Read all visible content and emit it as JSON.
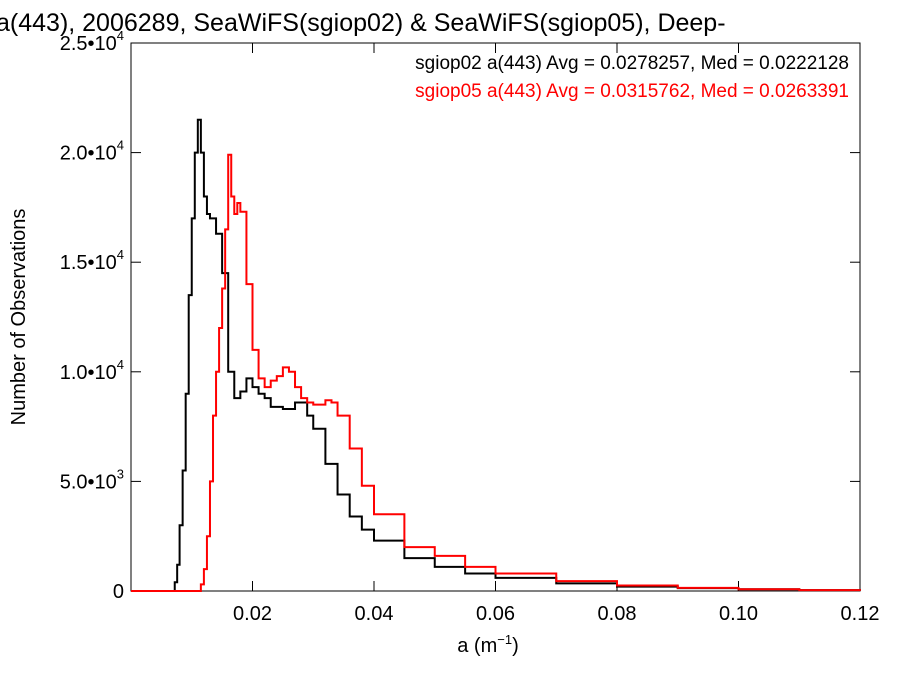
{
  "chart_data": {
    "type": "line",
    "title": "a(443), 2006289, SeaWiFS(sgiop02) & SeaWiFS(sgiop05), Deep-",
    "xlabel_main": "a (m",
    "xlabel_sup": "−1",
    "xlabel_end": ")",
    "ylabel": "Number of Observations",
    "xlim": [
      0.0,
      0.12
    ],
    "ylim": [
      0,
      25000
    ],
    "grid": false,
    "x_ticks": [
      {
        "value": 0.02,
        "label": "0.02"
      },
      {
        "value": 0.04,
        "label": "0.04"
      },
      {
        "value": 0.06,
        "label": "0.06"
      },
      {
        "value": 0.08,
        "label": "0.08"
      },
      {
        "value": 0.1,
        "label": "0.10"
      },
      {
        "value": 0.12,
        "label": "0.12"
      }
    ],
    "y_ticks": [
      {
        "value": 0,
        "mant": "0",
        "exp": ""
      },
      {
        "value": 5000,
        "mant": "5.0•10",
        "exp": "3"
      },
      {
        "value": 10000,
        "mant": "1.0•10",
        "exp": "4"
      },
      {
        "value": 15000,
        "mant": "1.5•10",
        "exp": "4"
      },
      {
        "value": 20000,
        "mant": "2.0•10",
        "exp": "4"
      },
      {
        "value": 25000,
        "mant": "2.5•10",
        "exp": "4"
      }
    ],
    "legend_position": "top-right",
    "series": [
      {
        "name": "sgiop02 a(443) Avg = 0.0278257, Med = 0.0222128",
        "color": "#000000",
        "x": [
          0.0,
          0.0068,
          0.0072,
          0.0076,
          0.008,
          0.0085,
          0.009,
          0.0095,
          0.01,
          0.0105,
          0.011,
          0.0115,
          0.012,
          0.0125,
          0.013,
          0.014,
          0.015,
          0.016,
          0.017,
          0.018,
          0.019,
          0.02,
          0.021,
          0.022,
          0.023,
          0.025,
          0.027,
          0.029,
          0.03,
          0.032,
          0.034,
          0.036,
          0.038,
          0.04,
          0.045,
          0.05,
          0.055,
          0.06,
          0.07,
          0.08,
          0.09,
          0.1,
          0.11,
          0.12
        ],
        "y": [
          0,
          0,
          400,
          1200,
          3000,
          5500,
          9000,
          13500,
          17000,
          20000,
          21500,
          20000,
          18000,
          17200,
          17000,
          16300,
          14500,
          10000,
          8800,
          9100,
          9700,
          9300,
          9000,
          8800,
          8400,
          8300,
          8600,
          8000,
          7400,
          5800,
          4400,
          3400,
          2800,
          2300,
          1500,
          1100,
          800,
          600,
          350,
          200,
          130,
          80,
          40,
          10
        ]
      },
      {
        "name": "sgiop05 a(443) Avg = 0.0315762, Med = 0.0263391",
        "color": "#ff0000",
        "x": [
          0.0,
          0.011,
          0.0115,
          0.012,
          0.0125,
          0.013,
          0.0135,
          0.014,
          0.0145,
          0.015,
          0.0155,
          0.016,
          0.0165,
          0.017,
          0.0175,
          0.018,
          0.019,
          0.02,
          0.021,
          0.022,
          0.023,
          0.024,
          0.025,
          0.026,
          0.027,
          0.028,
          0.029,
          0.03,
          0.032,
          0.033,
          0.034,
          0.036,
          0.038,
          0.04,
          0.045,
          0.05,
          0.055,
          0.06,
          0.07,
          0.08,
          0.09,
          0.1,
          0.11,
          0.12
        ],
        "y": [
          0,
          0,
          300,
          1000,
          2500,
          5000,
          8000,
          10000,
          12000,
          13800,
          16500,
          19900,
          18000,
          17200,
          17700,
          17300,
          14000,
          11000,
          9700,
          9300,
          9600,
          9800,
          10200,
          10000,
          9300,
          8800,
          8600,
          8500,
          8700,
          8600,
          8000,
          6500,
          4800,
          3500,
          2000,
          1600,
          1100,
          800,
          450,
          250,
          140,
          80,
          40,
          10
        ]
      }
    ]
  }
}
